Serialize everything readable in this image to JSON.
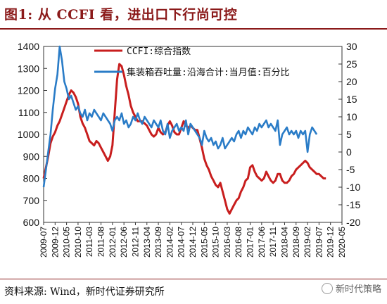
{
  "title": "图1:  从 CCFI 看，进出口下行尚可控",
  "source": "资料来源:  Wind，新时代证券研究所",
  "watermark": "新时代策略",
  "colors": {
    "ccfi": "#c81e1e",
    "throughput": "#2a7cc7",
    "accent": "#8b1a1a"
  },
  "chart_data": {
    "type": "line",
    "legend_position": "top-center",
    "grid": false,
    "x_labels": [
      "2009-07",
      "2009-12",
      "2010-05",
      "2010-10",
      "2011-03",
      "2011-08",
      "2012-01",
      "2012-06",
      "2012-11",
      "2013-04",
      "2013-09",
      "2014-02",
      "2014-07",
      "2014-12",
      "2015-05",
      "2015-10",
      "2016-03",
      "2016-08",
      "2017-01",
      "2017-06",
      "2017-11",
      "2018-04",
      "2018-09",
      "2019-02",
      "2019-07",
      "2019-12",
      "2020-05"
    ],
    "y_left": {
      "min": 600,
      "max": 1400,
      "ticks": [
        600,
        700,
        800,
        900,
        1000,
        1100,
        1200,
        1300,
        1400
      ]
    },
    "y_right": {
      "min": -20,
      "max": 30,
      "ticks": [
        -20,
        -15,
        -10,
        -5,
        0,
        5,
        10,
        15,
        20,
        25,
        30
      ]
    },
    "series": [
      {
        "name": "CCFI:综合指数",
        "axis": "left",
        "color": "#c81e1e",
        "points": [
          [
            "2009-07",
            800
          ],
          [
            "2009-08",
            850
          ],
          [
            "2009-09",
            900
          ],
          [
            "2009-10",
            960
          ],
          [
            "2009-11",
            990
          ],
          [
            "2009-12",
            1010
          ],
          [
            "2010-01",
            1040
          ],
          [
            "2010-02",
            1060
          ],
          [
            "2010-03",
            1090
          ],
          [
            "2010-04",
            1120
          ],
          [
            "2010-05",
            1150
          ],
          [
            "2010-06",
            1180
          ],
          [
            "2010-07",
            1200
          ],
          [
            "2010-08",
            1190
          ],
          [
            "2010-09",
            1170
          ],
          [
            "2010-10",
            1140
          ],
          [
            "2010-11",
            1080
          ],
          [
            "2010-12",
            1050
          ],
          [
            "2011-01",
            1030
          ],
          [
            "2011-02",
            1000
          ],
          [
            "2011-03",
            970
          ],
          [
            "2011-04",
            960
          ],
          [
            "2011-05",
            950
          ],
          [
            "2011-06",
            970
          ],
          [
            "2011-07",
            960
          ],
          [
            "2011-08",
            940
          ],
          [
            "2011-09",
            920
          ],
          [
            "2011-10",
            900
          ],
          [
            "2011-11",
            880
          ],
          [
            "2011-12",
            900
          ],
          [
            "2012-01",
            950
          ],
          [
            "2012-02",
            1100
          ],
          [
            "2012-03",
            1250
          ],
          [
            "2012-04",
            1320
          ],
          [
            "2012-05",
            1310
          ],
          [
            "2012-06",
            1270
          ],
          [
            "2012-07",
            1220
          ],
          [
            "2012-08",
            1180
          ],
          [
            "2012-09",
            1130
          ],
          [
            "2012-10",
            1100
          ],
          [
            "2012-11",
            1080
          ],
          [
            "2012-12",
            1060
          ],
          [
            "2013-01",
            1060
          ],
          [
            "2013-02",
            1060
          ],
          [
            "2013-03",
            1050
          ],
          [
            "2013-04",
            1040
          ],
          [
            "2013-05",
            1020
          ],
          [
            "2013-06",
            1000
          ],
          [
            "2013-07",
            990
          ],
          [
            "2013-08",
            1000
          ],
          [
            "2013-09",
            1030
          ],
          [
            "2013-10",
            1010
          ],
          [
            "2013-11",
            1000
          ],
          [
            "2013-12",
            1010
          ],
          [
            "2014-01",
            1040
          ],
          [
            "2014-02",
            1060
          ],
          [
            "2014-03",
            1040
          ],
          [
            "2014-04",
            1010
          ],
          [
            "2014-05",
            1000
          ],
          [
            "2014-06",
            1000
          ],
          [
            "2014-07",
            1030
          ],
          [
            "2014-08",
            1060
          ],
          [
            "2014-09",
            1040
          ],
          [
            "2014-10",
            1030
          ],
          [
            "2014-11",
            1040
          ],
          [
            "2014-12",
            1030
          ],
          [
            "2015-01",
            1020
          ],
          [
            "2015-02",
            1020
          ],
          [
            "2015-03",
            980
          ],
          [
            "2015-04",
            940
          ],
          [
            "2015-05",
            890
          ],
          [
            "2015-06",
            860
          ],
          [
            "2015-07",
            840
          ],
          [
            "2015-08",
            810
          ],
          [
            "2015-09",
            790
          ],
          [
            "2015-10",
            770
          ],
          [
            "2015-11",
            760
          ],
          [
            "2015-12",
            780
          ],
          [
            "2016-01",
            740
          ],
          [
            "2016-02",
            700
          ],
          [
            "2016-03",
            660
          ],
          [
            "2016-04",
            640
          ],
          [
            "2016-05",
            660
          ],
          [
            "2016-06",
            680
          ],
          [
            "2016-07",
            700
          ],
          [
            "2016-08",
            710
          ],
          [
            "2016-09",
            740
          ],
          [
            "2016-10",
            760
          ],
          [
            "2016-11",
            790
          ],
          [
            "2016-12",
            800
          ],
          [
            "2017-01",
            850
          ],
          [
            "2017-02",
            860
          ],
          [
            "2017-03",
            830
          ],
          [
            "2017-04",
            810
          ],
          [
            "2017-05",
            800
          ],
          [
            "2017-06",
            790
          ],
          [
            "2017-07",
            800
          ],
          [
            "2017-08",
            830
          ],
          [
            "2017-09",
            810
          ],
          [
            "2017-10",
            790
          ],
          [
            "2017-11",
            780
          ],
          [
            "2017-12",
            790
          ],
          [
            "2018-01",
            820
          ],
          [
            "2018-02",
            820
          ],
          [
            "2018-03",
            790
          ],
          [
            "2018-04",
            780
          ],
          [
            "2018-05",
            780
          ],
          [
            "2018-06",
            790
          ],
          [
            "2018-07",
            810
          ],
          [
            "2018-08",
            820
          ],
          [
            "2018-09",
            840
          ],
          [
            "2018-10",
            850
          ],
          [
            "2018-11",
            860
          ],
          [
            "2018-12",
            870
          ],
          [
            "2019-01",
            880
          ],
          [
            "2019-02",
            870
          ],
          [
            "2019-03",
            850
          ],
          [
            "2019-04",
            840
          ],
          [
            "2019-05",
            830
          ],
          [
            "2019-06",
            820
          ],
          [
            "2019-07",
            820
          ],
          [
            "2019-08",
            810
          ],
          [
            "2019-09",
            800
          ],
          [
            "2019-10",
            800
          ]
        ]
      },
      {
        "name": "集装箱吞吐量:沿海合计:当月值:百分比",
        "axis": "right",
        "color": "#2a7cc7",
        "points": [
          [
            "2009-07",
            -10
          ],
          [
            "2009-08",
            -5
          ],
          [
            "2009-09",
            0
          ],
          [
            "2009-10",
            5
          ],
          [
            "2009-11",
            12
          ],
          [
            "2009-12",
            18
          ],
          [
            "2010-01",
            22
          ],
          [
            "2010-02",
            30
          ],
          [
            "2010-03",
            26
          ],
          [
            "2010-04",
            20
          ],
          [
            "2010-05",
            18
          ],
          [
            "2010-06",
            15
          ],
          [
            "2010-07",
            16
          ],
          [
            "2010-08",
            14
          ],
          [
            "2010-09",
            12
          ],
          [
            "2010-10",
            13
          ],
          [
            "2010-11",
            11
          ],
          [
            "2010-12",
            10
          ],
          [
            "2011-01",
            12
          ],
          [
            "2011-02",
            9
          ],
          [
            "2011-03",
            11
          ],
          [
            "2011-04",
            10
          ],
          [
            "2011-05",
            12
          ],
          [
            "2011-06",
            11
          ],
          [
            "2011-07",
            10
          ],
          [
            "2011-08",
            9
          ],
          [
            "2011-09",
            11
          ],
          [
            "2011-10",
            10
          ],
          [
            "2011-11",
            9
          ],
          [
            "2011-12",
            8
          ],
          [
            "2012-01",
            6
          ],
          [
            "2012-02",
            9
          ],
          [
            "2012-03",
            10
          ],
          [
            "2012-04",
            9
          ],
          [
            "2012-05",
            11
          ],
          [
            "2012-06",
            8
          ],
          [
            "2012-07",
            9
          ],
          [
            "2012-08",
            7
          ],
          [
            "2012-09",
            8
          ],
          [
            "2012-10",
            10
          ],
          [
            "2012-11",
            9
          ],
          [
            "2012-12",
            11
          ],
          [
            "2013-01",
            9
          ],
          [
            "2013-02",
            8
          ],
          [
            "2013-03",
            10
          ],
          [
            "2013-04",
            9
          ],
          [
            "2013-05",
            8
          ],
          [
            "2013-06",
            7
          ],
          [
            "2013-07",
            9
          ],
          [
            "2013-08",
            8
          ],
          [
            "2013-09",
            7
          ],
          [
            "2013-10",
            9
          ],
          [
            "2013-11",
            6
          ],
          [
            "2013-12",
            5
          ],
          [
            "2014-01",
            8
          ],
          [
            "2014-02",
            4
          ],
          [
            "2014-03",
            6
          ],
          [
            "2014-04",
            7
          ],
          [
            "2014-05",
            8
          ],
          [
            "2014-06",
            6
          ],
          [
            "2014-07",
            7
          ],
          [
            "2014-08",
            6
          ],
          [
            "2014-09",
            9
          ],
          [
            "2014-10",
            5
          ],
          [
            "2014-11",
            8
          ],
          [
            "2014-12",
            7
          ],
          [
            "2015-01",
            6
          ],
          [
            "2015-02",
            5
          ],
          [
            "2015-03",
            4
          ],
          [
            "2015-04",
            2
          ],
          [
            "2015-05",
            6
          ],
          [
            "2015-06",
            4
          ],
          [
            "2015-07",
            3
          ],
          [
            "2015-08",
            4
          ],
          [
            "2015-09",
            2
          ],
          [
            "2015-10",
            3
          ],
          [
            "2015-11",
            1
          ],
          [
            "2015-12",
            2
          ],
          [
            "2016-01",
            4
          ],
          [
            "2016-02",
            1
          ],
          [
            "2016-03",
            2
          ],
          [
            "2016-04",
            3
          ],
          [
            "2016-05",
            4
          ],
          [
            "2016-06",
            3
          ],
          [
            "2016-07",
            5
          ],
          [
            "2016-08",
            6
          ],
          [
            "2016-09",
            4
          ],
          [
            "2016-10",
            6
          ],
          [
            "2016-11",
            5
          ],
          [
            "2016-12",
            7
          ],
          [
            "2017-01",
            6
          ],
          [
            "2017-02",
            5
          ],
          [
            "2017-03",
            7
          ],
          [
            "2017-04",
            6
          ],
          [
            "2017-05",
            8
          ],
          [
            "2017-06",
            7
          ],
          [
            "2017-07",
            8
          ],
          [
            "2017-08",
            9
          ],
          [
            "2017-09",
            7
          ],
          [
            "2017-10",
            8
          ],
          [
            "2017-11",
            7
          ],
          [
            "2017-12",
            6
          ],
          [
            "2018-01",
            9
          ],
          [
            "2018-02",
            2
          ],
          [
            "2018-03",
            5
          ],
          [
            "2018-04",
            6
          ],
          [
            "2018-05",
            7
          ],
          [
            "2018-06",
            5
          ],
          [
            "2018-07",
            6
          ],
          [
            "2018-08",
            5
          ],
          [
            "2018-09",
            6
          ],
          [
            "2018-10",
            4
          ],
          [
            "2018-11",
            6
          ],
          [
            "2018-12",
            5
          ],
          [
            "2019-01",
            6
          ],
          [
            "2019-02",
            0
          ],
          [
            "2019-03",
            5
          ],
          [
            "2019-04",
            7
          ],
          [
            "2019-05",
            6
          ],
          [
            "2019-06",
            5
          ]
        ]
      }
    ]
  }
}
